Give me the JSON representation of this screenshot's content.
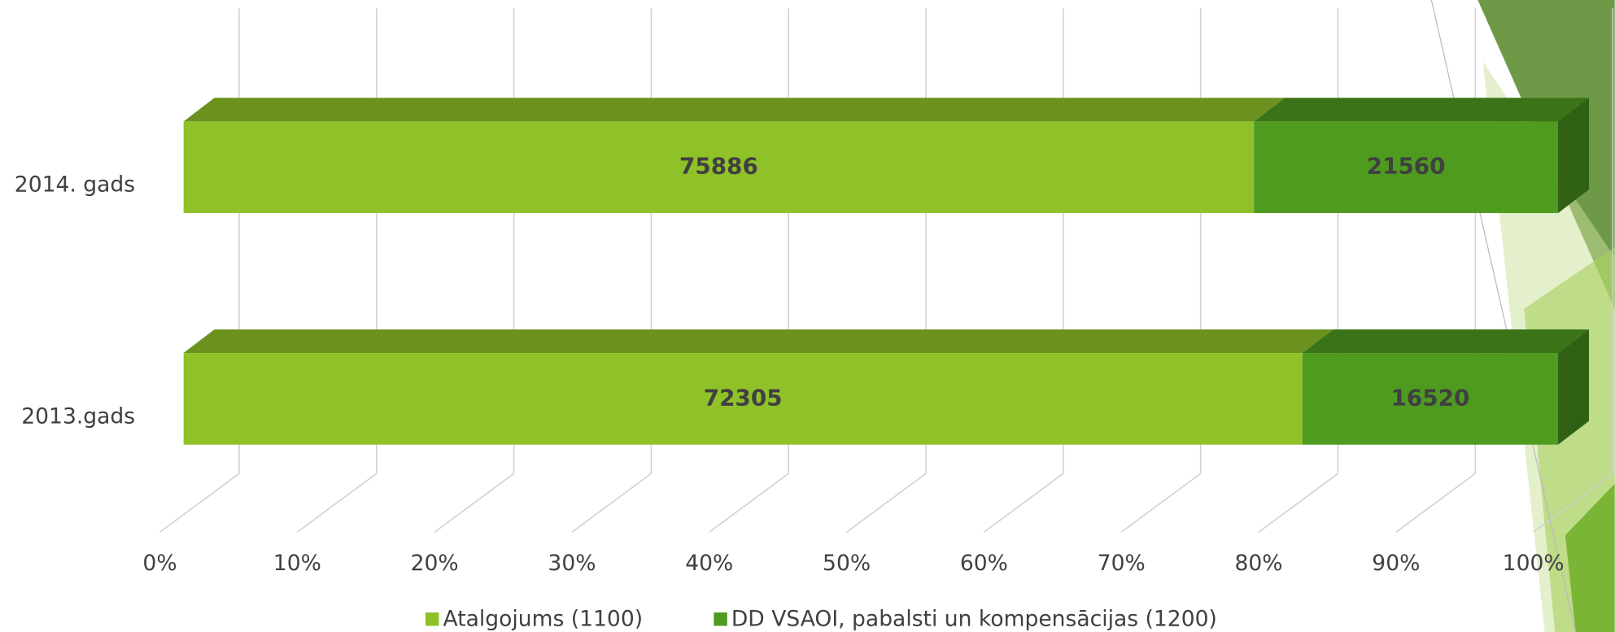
{
  "chart_data": {
    "type": "stacked-bar-100",
    "categories": [
      "2014. gads",
      "2013.gads"
    ],
    "series": [
      {
        "name": "Atalgojums (1100)",
        "color": "#8fc129",
        "values": [
          75886,
          72305
        ]
      },
      {
        "name": "DD VSAOI, pabalsti un kompensācijas (1200)",
        "color": "#4e9b20",
        "values": [
          21560,
          16520
        ]
      }
    ],
    "xlim": [
      0,
      100
    ],
    "xticks": [
      {
        "value": 0,
        "label": "0%"
      },
      {
        "value": 10,
        "label": "10%"
      },
      {
        "value": 20,
        "label": "20%"
      },
      {
        "value": 30,
        "label": "30%"
      },
      {
        "value": 40,
        "label": "40%"
      },
      {
        "value": 50,
        "label": "50%"
      },
      {
        "value": 60,
        "label": "60%"
      },
      {
        "value": 70,
        "label": "70%"
      },
      {
        "value": 80,
        "label": "80%"
      },
      {
        "value": 90,
        "label": "90%"
      },
      {
        "value": 100,
        "label": "100%"
      }
    ],
    "grid": true,
    "legend": "bottom"
  }
}
